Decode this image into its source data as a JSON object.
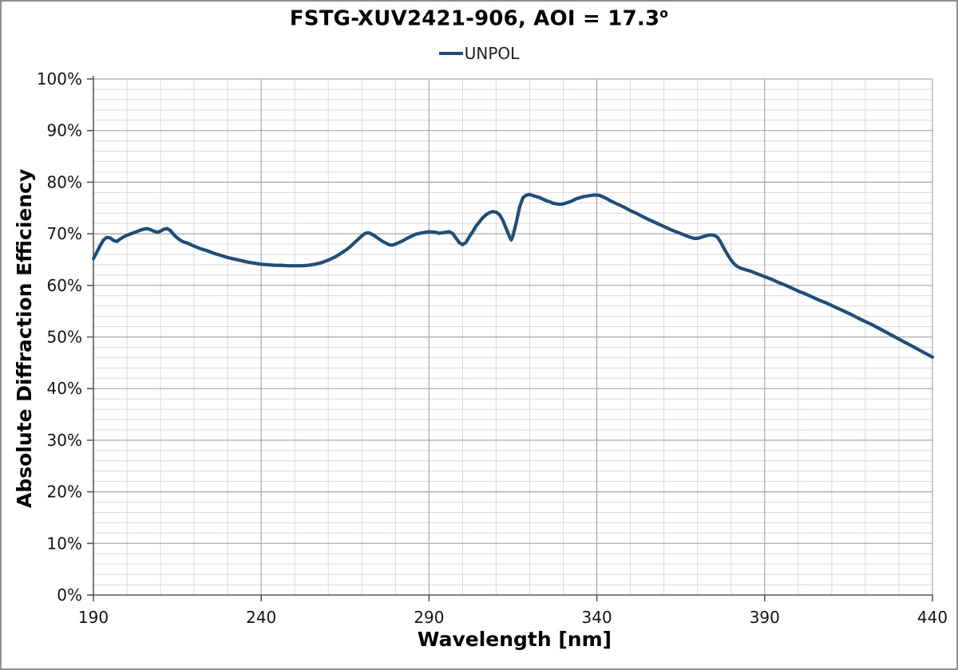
{
  "window": {
    "background": "#ffffff",
    "border_color": "#909090"
  },
  "chart_data": {
    "type": "line",
    "title": "FSTG-XUV2421-906, AOI = 17.3",
    "title_superscript": "o",
    "xlabel": "Wavelength [nm]",
    "ylabel": "Absolute Diffraction Efficiency",
    "legend_position": "top-center",
    "xlim": [
      190,
      440
    ],
    "ylim": [
      0,
      100
    ],
    "x_ticks": [
      190,
      240,
      290,
      340,
      390,
      440
    ],
    "y_ticks": [
      0,
      10,
      20,
      30,
      40,
      50,
      60,
      70,
      80,
      90,
      100
    ],
    "y_tick_suffix": "%",
    "x_minor_step": 10,
    "y_minor_step": 2,
    "grid": {
      "major_color": "#A6A6A6",
      "minor_color": "#D9D9D9",
      "axis_color": "#595959",
      "show_minor": true
    },
    "series": [
      {
        "name": "UNPOL",
        "color": "#1F4E79",
        "x": [
          190,
          191,
          192,
          193,
          194,
          195,
          196,
          197,
          198,
          199,
          200,
          202,
          204,
          205,
          206,
          207,
          208,
          209,
          210,
          211,
          212,
          213,
          214,
          215,
          216,
          217,
          218,
          220,
          222,
          224,
          226,
          228,
          230,
          232,
          234,
          236,
          238,
          240,
          242,
          244,
          246,
          248,
          250,
          252,
          254,
          256,
          258,
          260,
          262,
          264,
          266,
          268,
          270,
          271,
          272,
          273,
          274,
          276,
          278,
          279,
          280,
          282,
          284,
          286,
          288,
          290,
          292,
          293,
          294,
          295,
          296,
          297,
          298,
          299,
          300,
          301,
          302,
          303,
          304,
          305,
          306,
          307,
          308,
          309,
          310,
          311,
          312,
          313,
          314,
          314.5,
          315,
          316,
          317,
          318,
          319,
          320,
          321,
          322,
          323,
          324,
          325,
          326,
          327,
          328,
          329,
          330,
          331,
          332,
          333,
          334,
          335,
          336,
          337,
          338,
          339,
          340,
          341,
          342,
          343,
          344,
          346,
          348,
          350,
          352,
          354,
          356,
          358,
          360,
          362,
          364,
          366,
          367,
          368,
          369,
          370,
          371,
          372,
          373,
          374,
          375,
          376,
          377,
          378,
          379,
          380,
          381,
          382,
          383,
          384,
          385,
          386,
          388,
          390,
          392,
          394,
          396,
          398,
          400,
          402,
          404,
          406,
          408,
          410,
          412,
          414,
          416,
          418,
          420,
          422,
          424,
          426,
          428,
          430,
          432,
          434,
          436,
          438,
          440
        ],
        "y": [
          65.2,
          66.4,
          67.7,
          68.8,
          69.3,
          69.2,
          68.7,
          68.5,
          69.0,
          69.4,
          69.7,
          70.2,
          70.7,
          70.9,
          71.0,
          70.8,
          70.5,
          70.3,
          70.5,
          70.9,
          71.0,
          70.6,
          69.8,
          69.2,
          68.7,
          68.4,
          68.2,
          67.6,
          67.1,
          66.7,
          66.2,
          65.8,
          65.4,
          65.1,
          64.8,
          64.5,
          64.3,
          64.1,
          64.0,
          63.9,
          63.9,
          63.8,
          63.8,
          63.8,
          63.9,
          64.1,
          64.4,
          64.9,
          65.5,
          66.3,
          67.2,
          68.4,
          69.6,
          70.1,
          70.2,
          69.9,
          69.5,
          68.6,
          67.9,
          67.8,
          68.0,
          68.6,
          69.3,
          69.9,
          70.2,
          70.4,
          70.3,
          70.1,
          70.2,
          70.3,
          70.4,
          70.1,
          69.2,
          68.3,
          67.9,
          68.3,
          69.4,
          70.4,
          71.5,
          72.3,
          73.1,
          73.7,
          74.1,
          74.3,
          74.2,
          73.7,
          72.6,
          71.0,
          69.4,
          68.8,
          69.6,
          72.2,
          75.2,
          77.0,
          77.5,
          77.6,
          77.4,
          77.2,
          77.0,
          76.7,
          76.4,
          76.2,
          75.9,
          75.8,
          75.7,
          75.8,
          76.0,
          76.2,
          76.5,
          76.8,
          77.0,
          77.2,
          77.3,
          77.4,
          77.5,
          77.5,
          77.4,
          77.1,
          76.8,
          76.4,
          75.8,
          75.2,
          74.5,
          73.9,
          73.2,
          72.6,
          72.0,
          71.4,
          70.8,
          70.3,
          69.8,
          69.5,
          69.3,
          69.1,
          69.1,
          69.3,
          69.5,
          69.7,
          69.8,
          69.7,
          69.3,
          68.3,
          67.0,
          65.9,
          64.9,
          64.1,
          63.6,
          63.3,
          63.1,
          62.9,
          62.7,
          62.2,
          61.7,
          61.2,
          60.6,
          60.1,
          59.5,
          58.9,
          58.4,
          57.8,
          57.2,
          56.7,
          56.1,
          55.5,
          54.9,
          54.3,
          53.6,
          53.0,
          52.4,
          51.7,
          51.0,
          50.3,
          49.6,
          48.9,
          48.2,
          47.5,
          46.8,
          46.1
        ]
      }
    ]
  }
}
